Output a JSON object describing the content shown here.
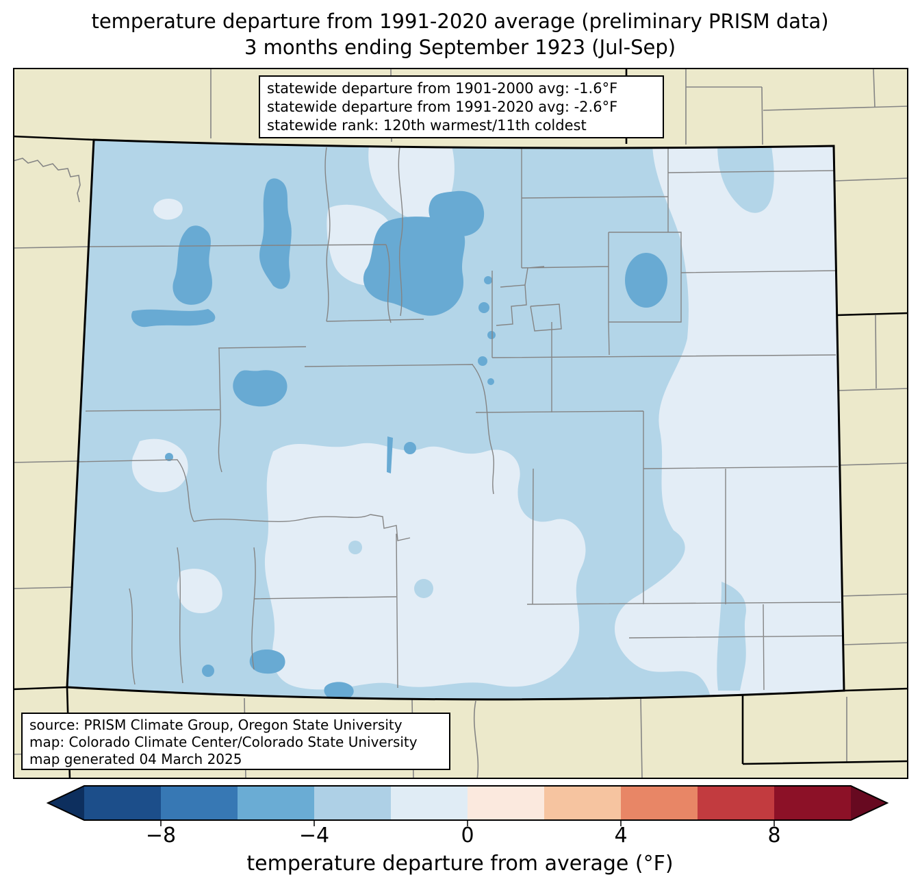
{
  "title": {
    "line1": "temperature departure from 1991-2020 average (preliminary PRISM data)",
    "line2": "3 months ending September 1923 (Jul-Sep)"
  },
  "stats_box": {
    "lines": [
      "statewide departure from 1901-2000 avg: -1.6°F",
      "statewide departure from 1991-2020 avg: -2.6°F",
      "statewide rank: 120th warmest/11th coldest"
    ]
  },
  "source_box": {
    "lines": [
      "source: PRISM Climate Group, Oregon State University",
      "map: Colorado Climate Center/Colorado State University",
      "map generated 04 March 2025"
    ]
  },
  "colorbar": {
    "label": "temperature departure from average (°F)",
    "tick_labels": [
      "−8",
      "−4",
      "0",
      "4",
      "8"
    ],
    "tick_values": [
      -8,
      -4,
      0,
      4,
      8
    ],
    "range": [
      -10,
      10
    ],
    "segment_bounds": [
      -10,
      -8,
      -6,
      -4,
      -2,
      0,
      2,
      4,
      6,
      8,
      10
    ],
    "segment_colors": [
      "#1c4e8a",
      "#3778b4",
      "#6aacd4",
      "#aed0e6",
      "#e0ecf5",
      "#fbe9de",
      "#f6c4a0",
      "#e88666",
      "#c23b3f",
      "#8c1127"
    ],
    "under_color": "#0d2f5e",
    "over_color": "#670920"
  },
  "map": {
    "region": "Colorado",
    "background_color": "#ece9cb",
    "state_fill": "#b3d5e8",
    "shade_light": "#e3edf6",
    "shade_medium": "#68aad3",
    "county_line_color": "#848484",
    "state_border_color": "#000000",
    "shade_legend": [
      {
        "range": "-6 to -4 °F",
        "color": "#68aad3"
      },
      {
        "range": "-4 to -2 °F",
        "color": "#b3d5e8"
      },
      {
        "range": "-2 to 0 °F",
        "color": "#e3edf6"
      }
    ]
  }
}
